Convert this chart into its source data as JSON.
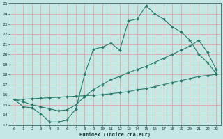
{
  "xlabel": "Humidex (Indice chaleur)",
  "bg_color": "#c5e8e5",
  "grid_color": "#dba8a8",
  "line_color": "#2a7a6a",
  "xlim": [
    -0.5,
    23.5
  ],
  "ylim": [
    13,
    25
  ],
  "xticks": [
    0,
    1,
    2,
    3,
    4,
    5,
    6,
    7,
    8,
    9,
    10,
    11,
    12,
    13,
    14,
    15,
    16,
    17,
    18,
    19,
    20,
    21,
    22,
    23
  ],
  "yticks": [
    13,
    14,
    15,
    16,
    17,
    18,
    19,
    20,
    21,
    22,
    23,
    24,
    25
  ],
  "line1_x": [
    0,
    1,
    2,
    3,
    4,
    5,
    6,
    7,
    8,
    9,
    10,
    11,
    12,
    13,
    14,
    15,
    16,
    17,
    18,
    19,
    20,
    21,
    22,
    23
  ],
  "line1_y": [
    15.5,
    14.8,
    14.7,
    14.1,
    13.3,
    13.3,
    13.5,
    14.6,
    18.0,
    20.5,
    20.7,
    21.1,
    20.4,
    23.3,
    23.5,
    24.8,
    24.0,
    23.5,
    22.7,
    22.2,
    21.4,
    20.0,
    19.2,
    18.1
  ],
  "line2_x": [
    0,
    1,
    2,
    3,
    4,
    5,
    6,
    7,
    8,
    9,
    10,
    11,
    12,
    13,
    14,
    15,
    16,
    17,
    18,
    19,
    20,
    21,
    22,
    23
  ],
  "line2_y": [
    15.5,
    15.55,
    15.6,
    15.65,
    15.7,
    15.75,
    15.8,
    15.85,
    15.9,
    15.95,
    16.0,
    16.1,
    16.2,
    16.3,
    16.5,
    16.6,
    16.8,
    17.0,
    17.2,
    17.4,
    17.6,
    17.8,
    17.9,
    18.0
  ],
  "line3_x": [
    0,
    1,
    2,
    3,
    4,
    5,
    6,
    7,
    8,
    9,
    10,
    11,
    12,
    13,
    14,
    15,
    16,
    17,
    18,
    19,
    20,
    21,
    22,
    23
  ],
  "line3_y": [
    15.5,
    15.3,
    15.0,
    14.8,
    14.6,
    14.4,
    14.5,
    15.0,
    15.8,
    16.5,
    17.0,
    17.5,
    17.8,
    18.2,
    18.5,
    18.8,
    19.2,
    19.6,
    20.0,
    20.4,
    20.8,
    21.4,
    20.2,
    18.5
  ]
}
